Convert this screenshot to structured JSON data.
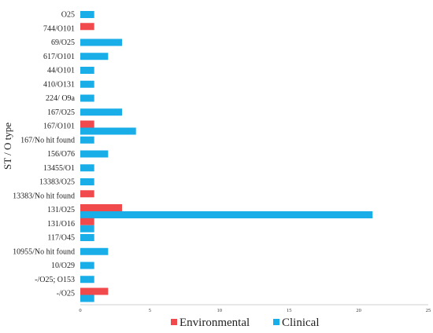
{
  "chart_data": {
    "type": "bar",
    "orientation": "horizontal",
    "ylabel": "ST / O type",
    "xlabel": "",
    "xlim": [
      0,
      25
    ],
    "xticks": [
      0,
      5,
      10,
      15,
      20,
      25
    ],
    "grid": false,
    "legend_position": "bottom",
    "categories": [
      "O25",
      "744/O101",
      "69/O25",
      "617/O101",
      "44/O101",
      "410/O131",
      "224/ O9a",
      "167/O25",
      "167/O101",
      "167/No hit found",
      "156/O76",
      "13455/O1",
      "13383/O25",
      "13383/No hit found",
      "131/O25",
      "131/O16",
      "117/O45",
      "10955/No hit found",
      "10/O29",
      "-/O25; O153",
      "-/O25"
    ],
    "series": [
      {
        "name": "Environmental",
        "color": "#f04a4d",
        "values": [
          0,
          1,
          0,
          0,
          0,
          0,
          0,
          0,
          1,
          0,
          0,
          0,
          0,
          1,
          3,
          1,
          0,
          0,
          0,
          0,
          2
        ]
      },
      {
        "name": "Clinical",
        "color": "#1aaee8",
        "values": [
          1,
          0,
          3,
          2,
          1,
          1,
          1,
          3,
          4,
          1,
          2,
          1,
          1,
          0,
          21,
          1,
          1,
          2,
          1,
          1,
          1
        ]
      }
    ]
  }
}
